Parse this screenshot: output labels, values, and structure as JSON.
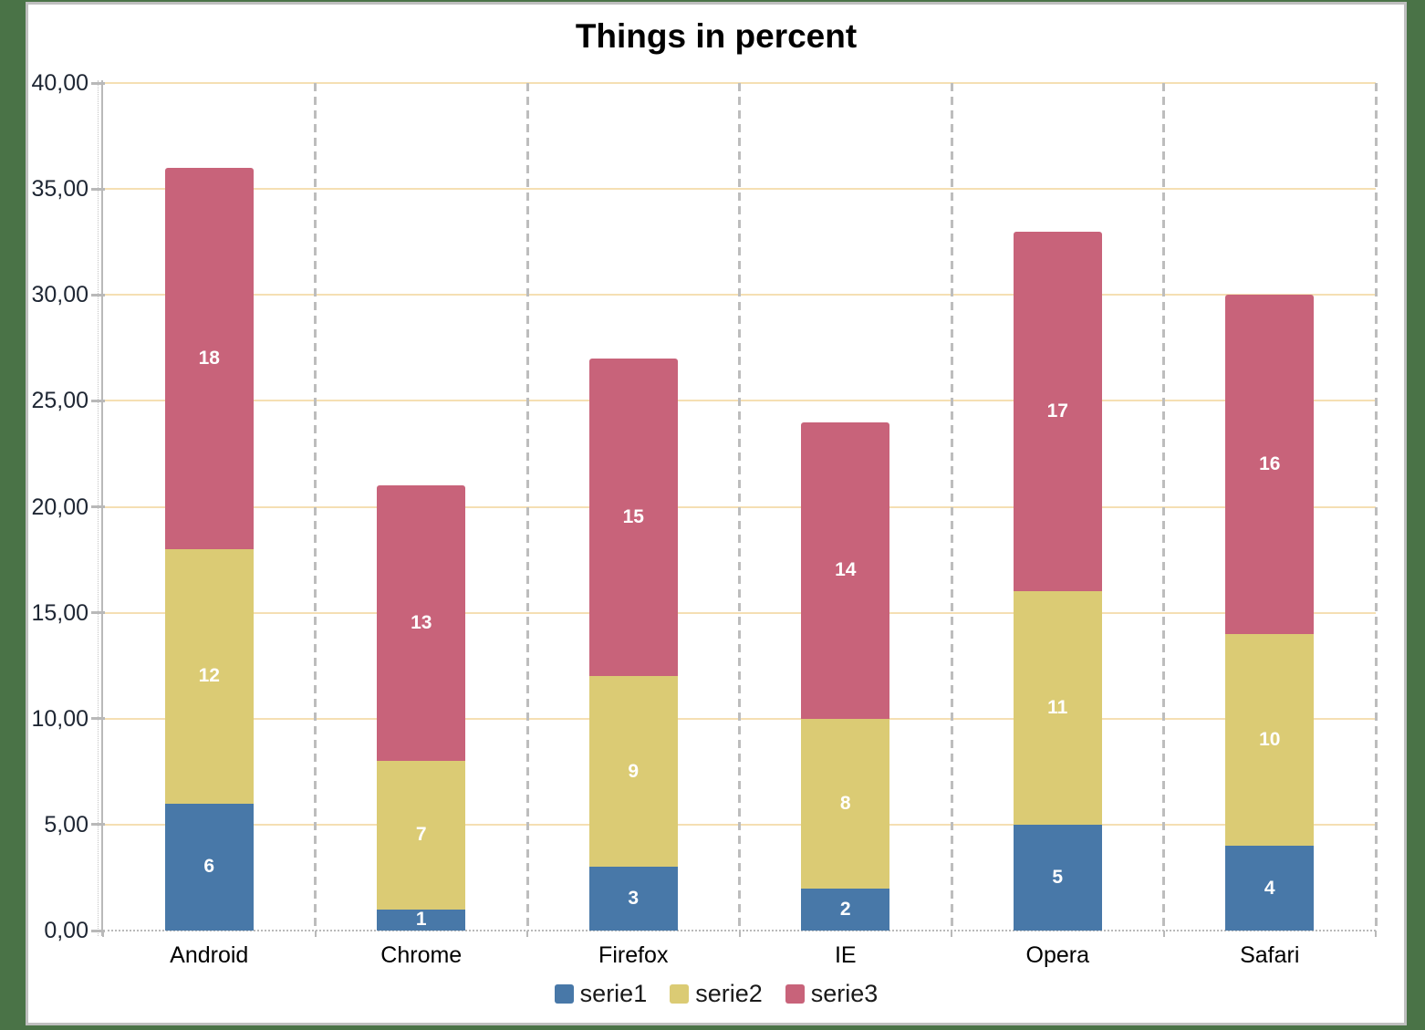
{
  "chart_data": {
    "type": "bar",
    "stacked": true,
    "title": "Things in percent",
    "categories": [
      "Android",
      "Chrome",
      "Firefox",
      "IE",
      "Opera",
      "Safari"
    ],
    "series": [
      {
        "name": "serie1",
        "color": "#4878A8",
        "values": [
          6,
          1,
          3,
          2,
          5,
          4
        ]
      },
      {
        "name": "serie2",
        "color": "#DBCB74",
        "values": [
          12,
          7,
          9,
          8,
          11,
          10
        ]
      },
      {
        "name": "serie3",
        "color": "#C8637A",
        "values": [
          18,
          13,
          15,
          14,
          17,
          16
        ]
      }
    ],
    "totals": [
      36,
      21,
      27,
      24,
      33,
      30
    ],
    "ylim": [
      0,
      40
    ],
    "ytick_step": 5,
    "y_tick_labels": [
      "0,00",
      "5,00",
      "10,00",
      "15,00",
      "20,00",
      "25,00",
      "30,00",
      "35,00",
      "40,00"
    ],
    "grid": "horizontal",
    "legend_position": "bottom",
    "legend": [
      "serie1",
      "serie2",
      "serie3"
    ],
    "value_label_color": "#FFFFFF"
  },
  "colors": {
    "page_background": "#4A7347",
    "panel_background": "#FFFFFF",
    "panel_border": "#BFBFBF",
    "gridline": "#F5DFB3",
    "separator": "#BDBDBD",
    "axis": "#B9B9B9",
    "y_tick_label": "#1E2633",
    "category_label": "#000000",
    "title": "#000000"
  }
}
